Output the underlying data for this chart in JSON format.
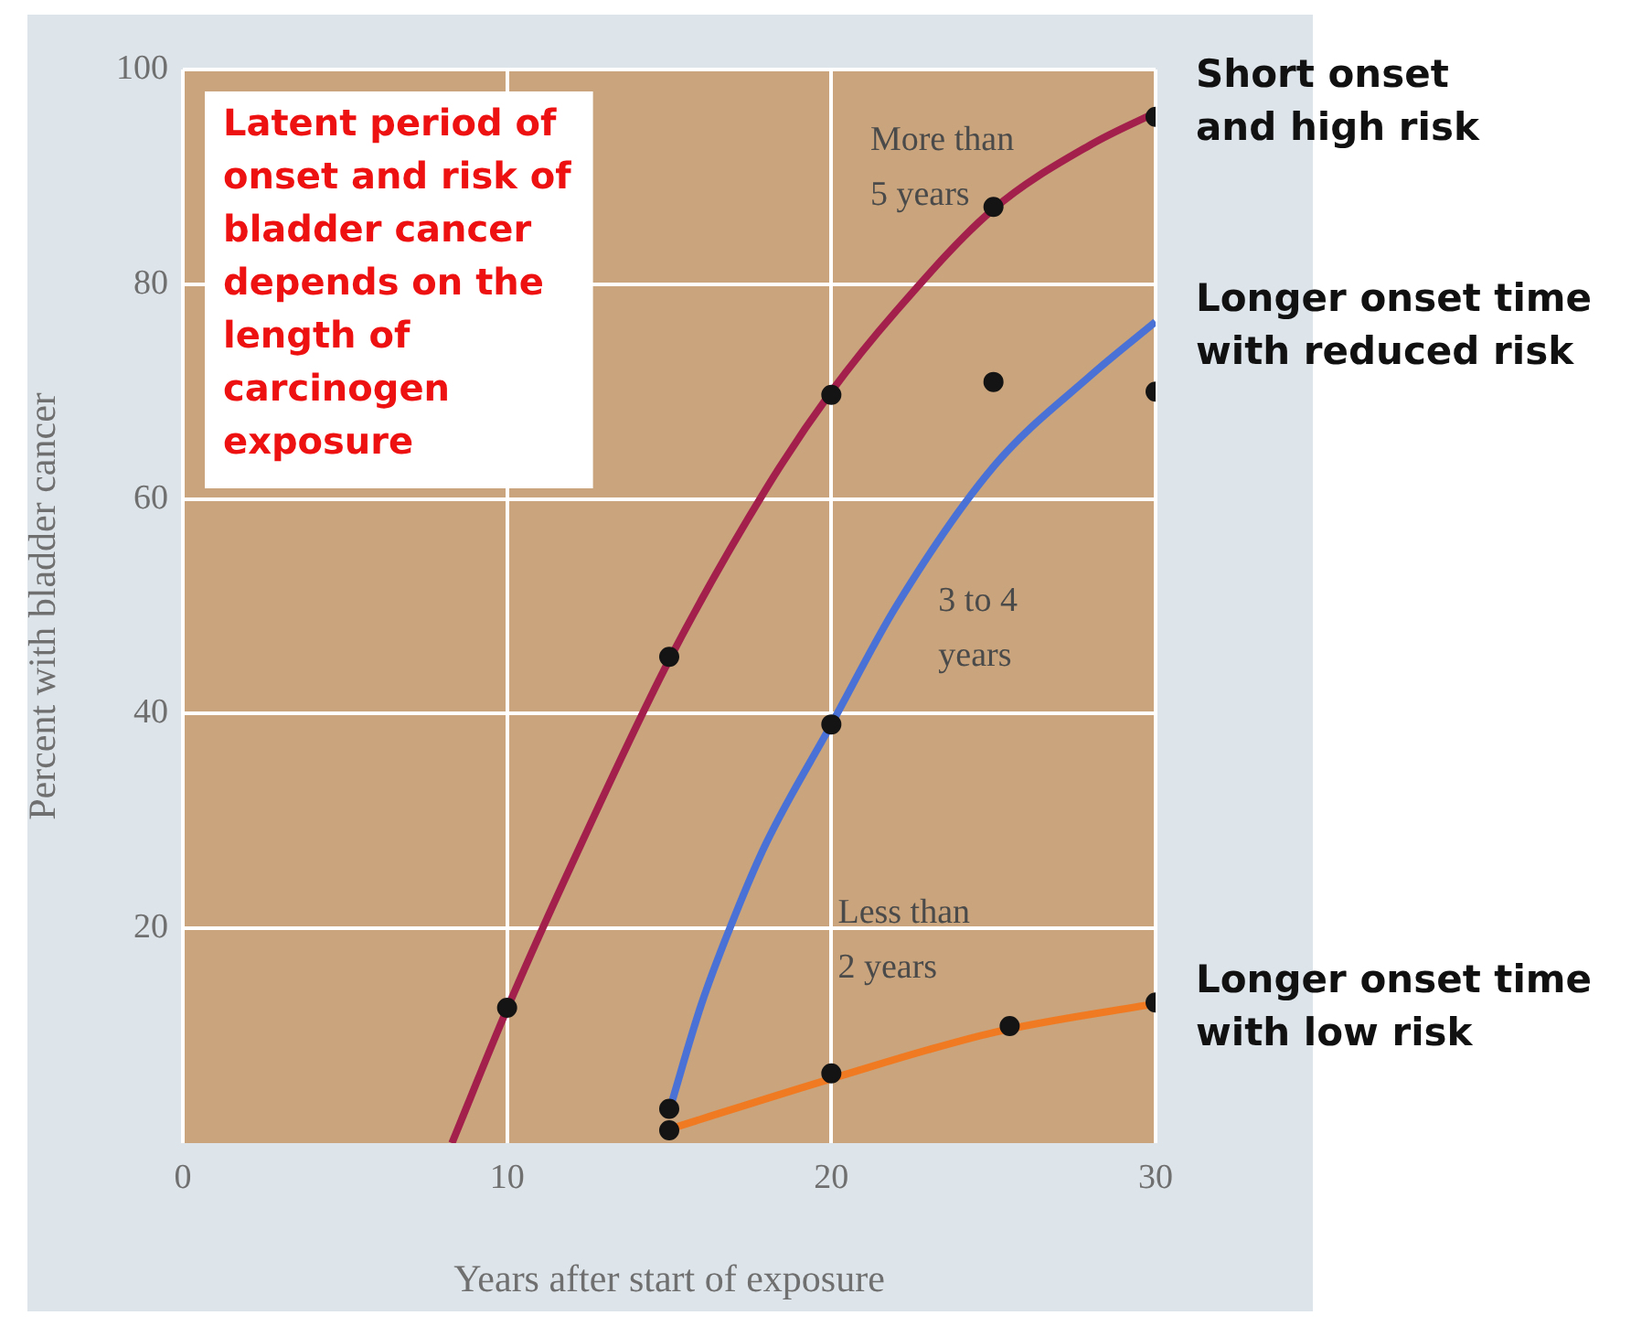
{
  "chart_data": {
    "type": "line",
    "xlabel": "Years after start of exposure",
    "ylabel": "Percent with bladder cancer",
    "xlim": [
      0,
      30
    ],
    "xticks": [
      0,
      10,
      20,
      30
    ],
    "ylim": [
      0,
      100
    ],
    "yticks": [
      20,
      40,
      60,
      80,
      100
    ],
    "grid": true,
    "legend": false,
    "line_style": "solid",
    "series": [
      {
        "name": "More than 5 years",
        "marker": "none",
        "color": "#a3204c",
        "x": [
          8.3,
          10,
          12,
          15,
          18,
          20,
          22,
          25,
          28,
          30
        ],
        "values": [
          0,
          12.5,
          26,
          45,
          61,
          70,
          77.5,
          87,
          93,
          96
        ]
      },
      {
        "name": "3 to 4 years",
        "marker": "none",
        "color": "#4a72d6",
        "x": [
          15,
          16,
          17,
          18,
          20,
          22,
          25,
          28,
          30
        ],
        "values": [
          3,
          13,
          21,
          28,
          39,
          50,
          63,
          71.5,
          76.5
        ]
      },
      {
        "name": "Less than 2 years",
        "marker": "none",
        "color": "#f07a22",
        "x": [
          15,
          20,
          25,
          30
        ],
        "values": [
          1.3,
          6,
          10.3,
          13
        ]
      },
      {
        "type": "scatter",
        "marker": "circle",
        "color": "#141414",
        "x": [
          10,
          15,
          20,
          25,
          30
        ],
        "values": [
          12.6,
          45.3,
          69.7,
          87.2,
          95.6
        ]
      },
      {
        "type": "scatter",
        "marker": "circle",
        "color": "#141414",
        "x": [
          15,
          20,
          25,
          30
        ],
        "values": [
          3.2,
          39,
          70.9,
          70
        ]
      },
      {
        "type": "scatter",
        "marker": "circle",
        "color": "#141414",
        "x": [
          15,
          20,
          25.5,
          30
        ],
        "values": [
          1.2,
          6.5,
          10.9,
          13.1
        ]
      }
    ],
    "annotations": [
      "Latent period of onset and risk of bladder cancer depends on the length of carcinogen exposure",
      "Short onset and high risk",
      "Longer onset time with reduced risk",
      "Longer onset time with low risk"
    ]
  }
}
